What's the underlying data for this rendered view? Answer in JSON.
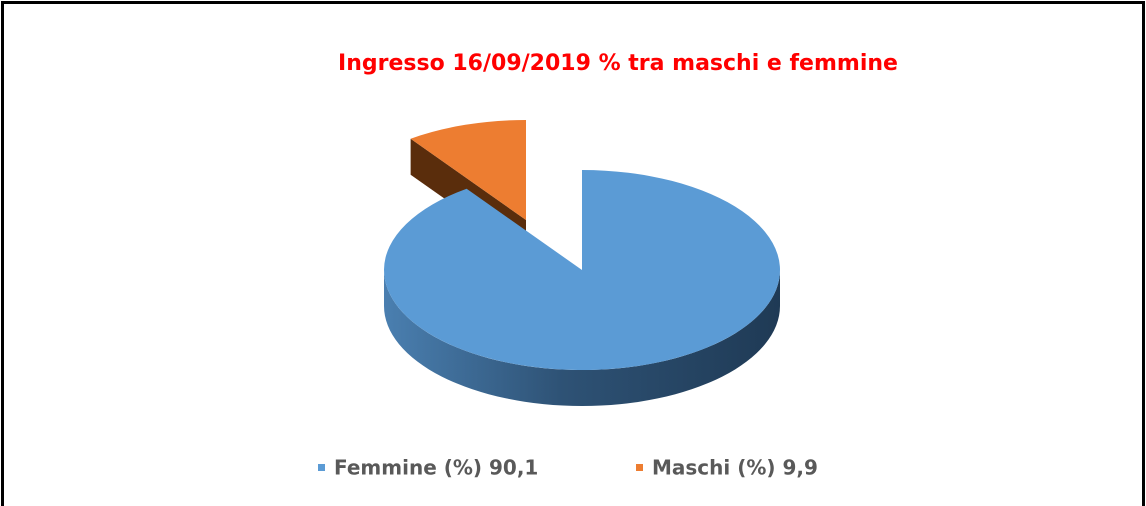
{
  "chart_data": {
    "type": "pie3d",
    "title": "Ingresso 16/09/2019 % tra maschi e femmine",
    "categories": [
      "Femmine (%) 90,1",
      "Maschi (%) 9,9"
    ],
    "values": [
      90.1,
      9.9
    ],
    "colors": [
      "#5b9bd5",
      "#ed7d31"
    ],
    "exploded": [
      false,
      true
    ],
    "legend": "bottom"
  }
}
